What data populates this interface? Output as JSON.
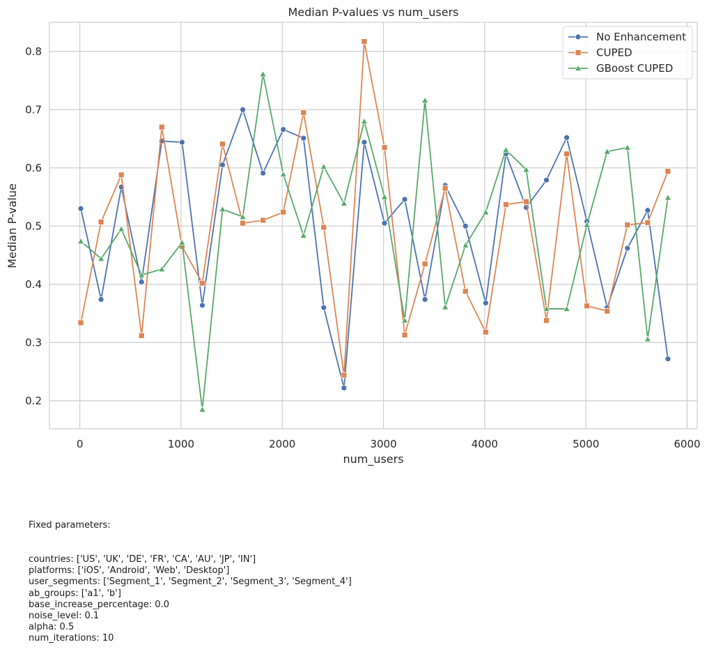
{
  "chart_data": {
    "type": "line",
    "title": "Median P-values vs num_users",
    "xlabel": "num_users",
    "ylabel": "Median P-value",
    "xlim": [
      -300,
      6100
    ],
    "ylim": [
      0.152,
      0.85
    ],
    "xticks": [
      0,
      1000,
      2000,
      3000,
      4000,
      5000,
      6000
    ],
    "yticks": [
      0.2,
      0.3,
      0.4,
      0.5,
      0.6,
      0.7,
      0.8
    ],
    "grid": true,
    "legend_position": "top-right",
    "x": [
      10,
      210,
      410,
      610,
      810,
      1010,
      1210,
      1410,
      1610,
      1810,
      2010,
      2210,
      2410,
      2610,
      2810,
      3010,
      3210,
      3410,
      3610,
      3810,
      4010,
      4210,
      4410,
      4610,
      4810,
      5010,
      5210,
      5410,
      5610,
      5810
    ],
    "series": [
      {
        "name": "No Enhancement",
        "color": "#4c72b0",
        "marker": "circle",
        "values": [
          0.53,
          0.374,
          0.567,
          0.404,
          0.646,
          0.644,
          0.364,
          0.605,
          0.7,
          0.591,
          0.666,
          0.651,
          0.36,
          0.222,
          0.644,
          0.505,
          0.546,
          0.374,
          0.57,
          0.5,
          0.368,
          0.624,
          0.532,
          0.579,
          0.652,
          0.508,
          0.36,
          0.462,
          0.527,
          0.272
        ]
      },
      {
        "name": "CUPED",
        "color": "#dd8452",
        "marker": "square",
        "values": [
          0.334,
          0.507,
          0.588,
          0.312,
          0.67,
          0.465,
          0.402,
          0.641,
          0.505,
          0.51,
          0.524,
          0.695,
          0.498,
          0.244,
          0.817,
          0.635,
          0.313,
          0.435,
          0.565,
          0.388,
          0.318,
          0.537,
          0.542,
          0.338,
          0.624,
          0.363,
          0.354,
          0.502,
          0.506,
          0.594
        ]
      },
      {
        "name": "GBoost CUPED",
        "color": "#55a868",
        "marker": "triangle",
        "values": [
          0.474,
          0.444,
          0.495,
          0.416,
          0.426,
          0.472,
          0.185,
          0.529,
          0.516,
          0.761,
          0.589,
          0.484,
          0.602,
          0.539,
          0.68,
          0.55,
          0.338,
          0.716,
          0.361,
          0.467,
          0.524,
          0.631,
          0.597,
          0.358,
          0.358,
          0.502,
          0.628,
          0.635,
          0.306,
          0.549
        ]
      }
    ]
  },
  "params": {
    "heading": "Fixed parameters:",
    "lines": [
      "countries: ['US', 'UK', 'DE', 'FR', 'CA', 'AU', 'JP', 'IN']",
      "platforms: ['iOS', 'Android', 'Web', 'Desktop']",
      "user_segments: ['Segment_1', 'Segment_2', 'Segment_3', 'Segment_4']",
      "ab_groups: ['a1', 'b']",
      "base_increase_percentage: 0.0",
      "noise_level: 0.1",
      "alpha: 0.5",
      "num_iterations: 10"
    ]
  }
}
